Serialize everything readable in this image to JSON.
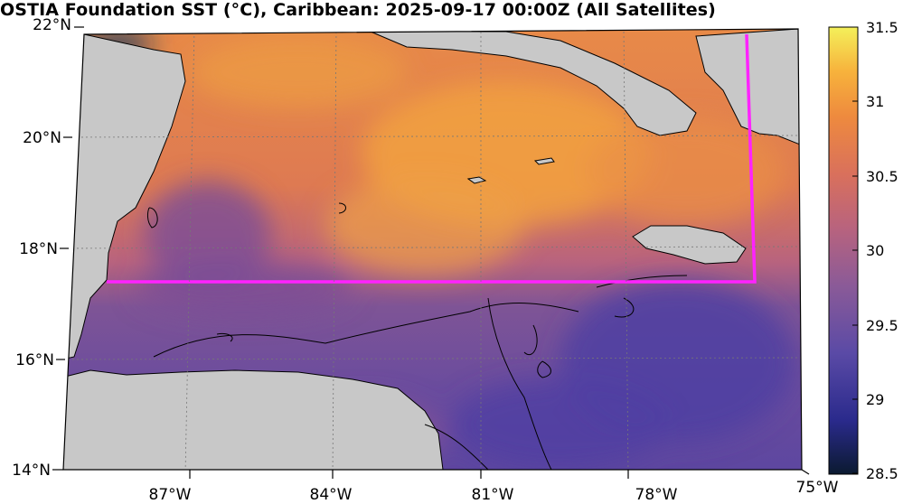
{
  "title": "OSTIA Foundation SST (°C), Caribbean: 2025-09-17 00:00Z (All Satellites)",
  "map": {
    "lat_labels": [
      "22°N",
      "20°N",
      "18°N",
      "16°N",
      "14°N"
    ],
    "lon_labels": [
      "87°W",
      "84°W",
      "81°W",
      "78°W",
      "75°W"
    ],
    "colors": {
      "land": "#c8c8c8",
      "coast": "#000000",
      "region_line": "#ff22ff"
    }
  },
  "colorbar": {
    "ticks": [
      "31.5",
      "31",
      "30.5",
      "30",
      "29.5",
      "29",
      "28.5"
    ],
    "range": [
      28.5,
      31.5
    ],
    "colormap": "thermal",
    "stops": [
      "#0b1a30",
      "#2a2a8c",
      "#5a4aa6",
      "#8a5a98",
      "#b8637e",
      "#d9705c",
      "#ee8a3e",
      "#f7b23c",
      "#f4f05a"
    ]
  }
}
